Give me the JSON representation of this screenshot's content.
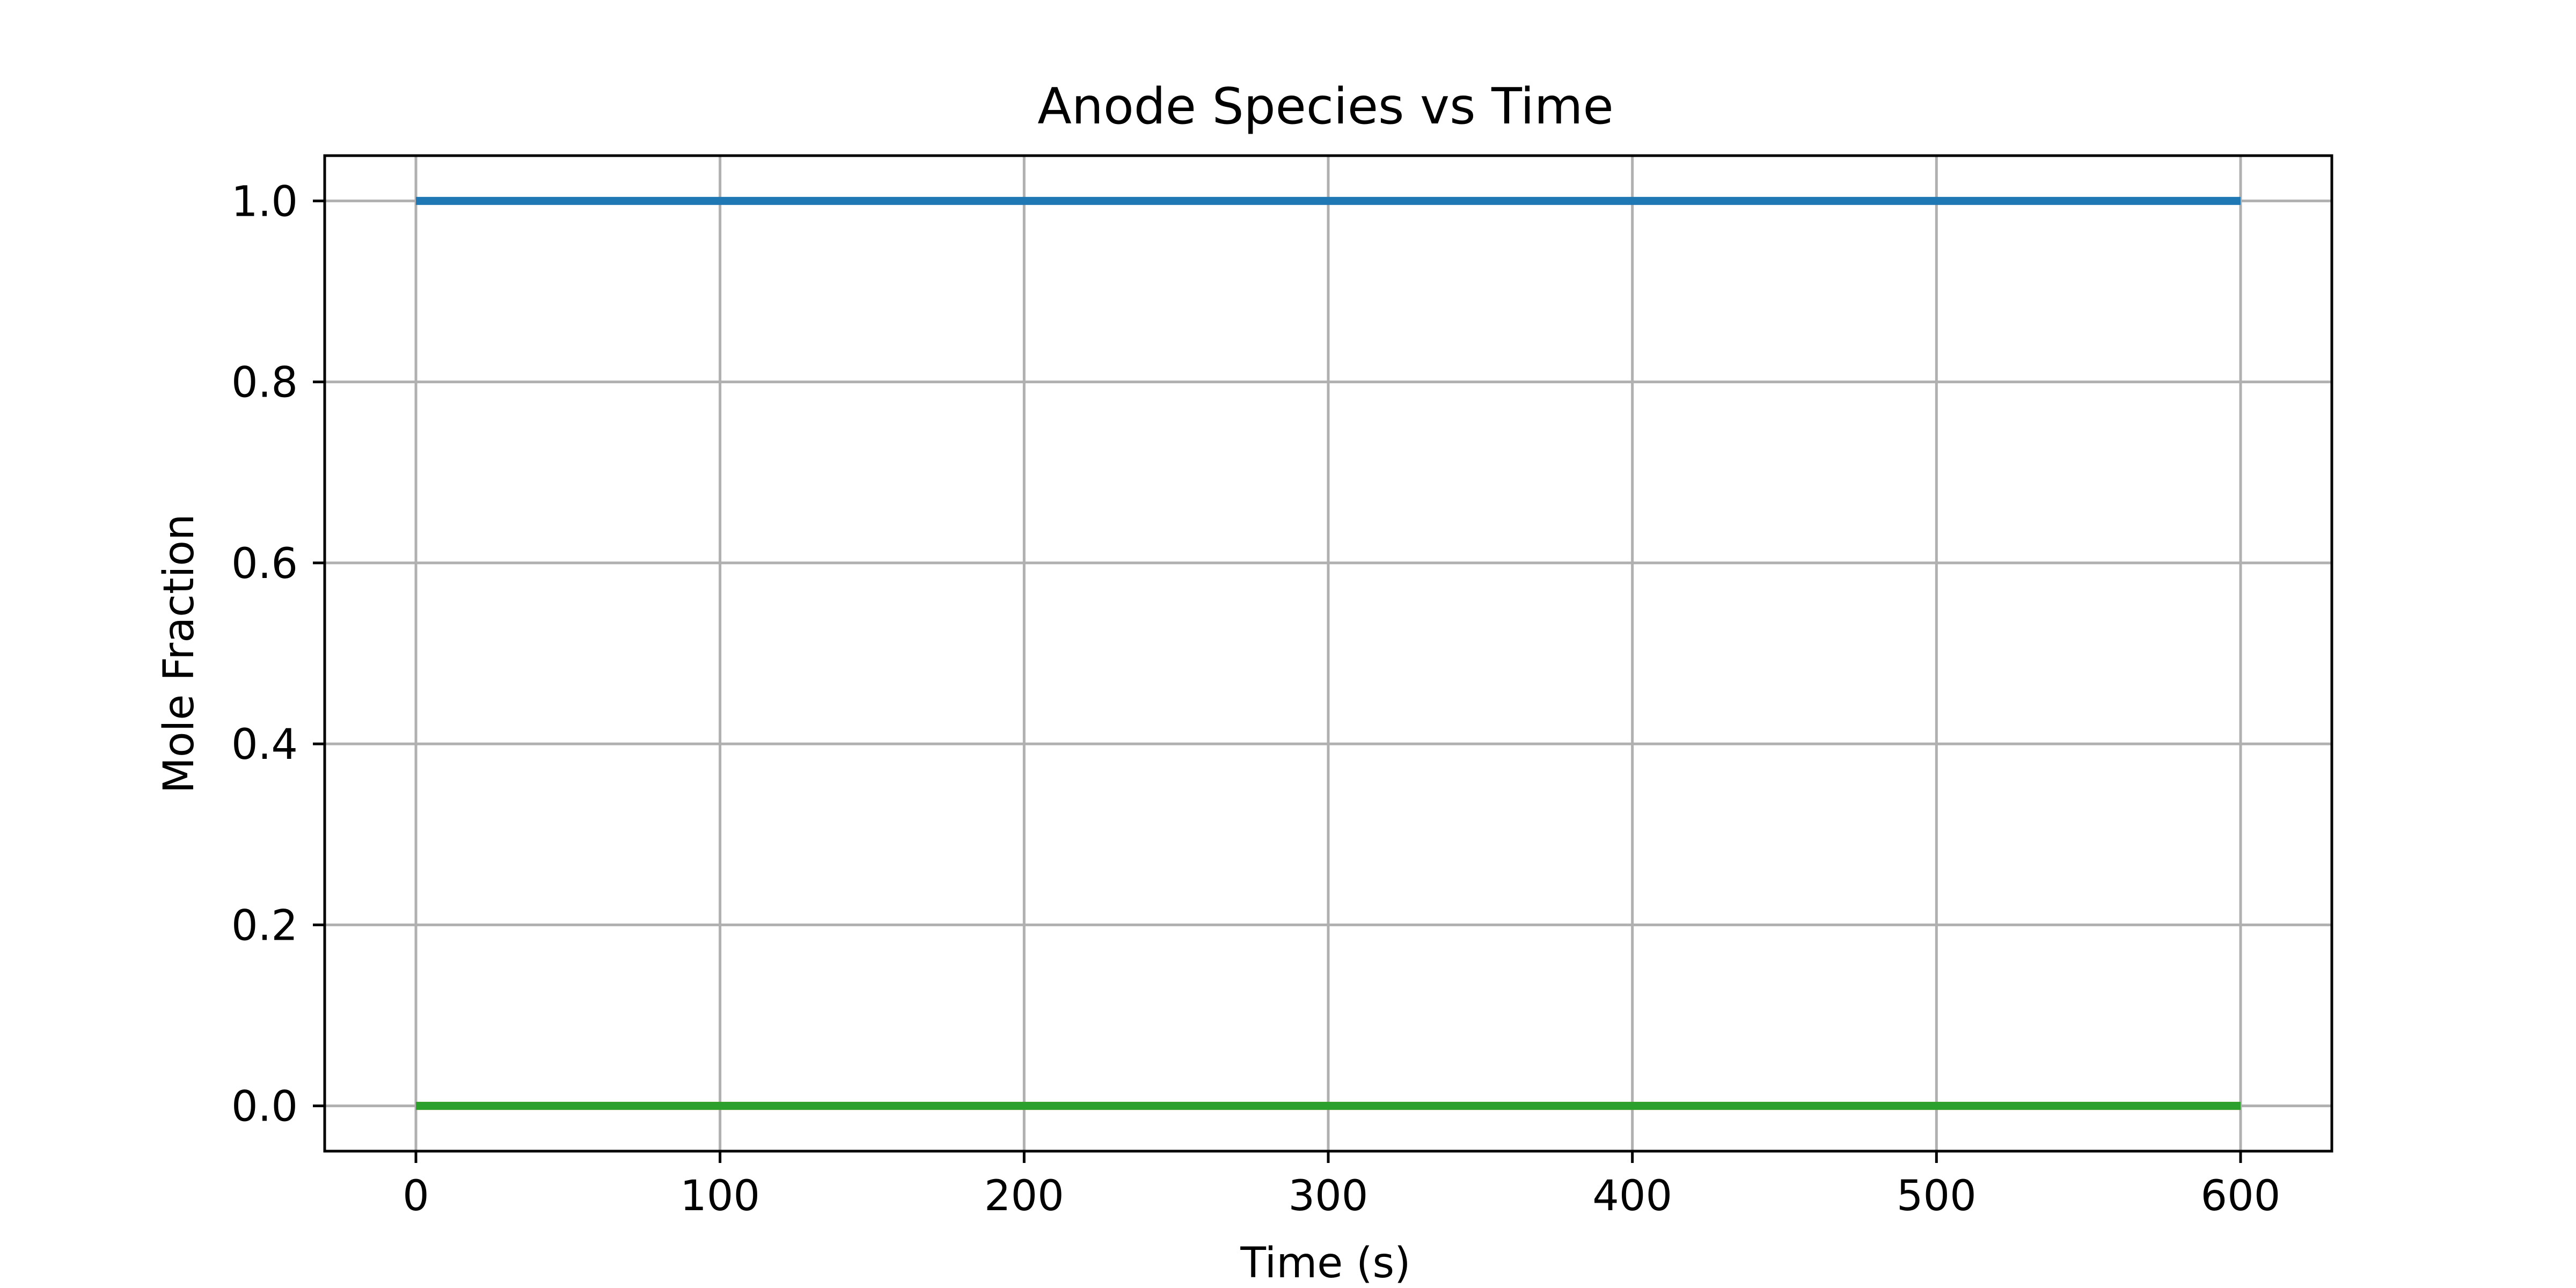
{
  "chart_data": {
    "type": "line",
    "title": "Anode Species vs Time",
    "xlabel": "Time (s)",
    "ylabel": "Mole Fraction",
    "xlim": [
      -30,
      630
    ],
    "ylim": [
      -0.05,
      1.05
    ],
    "xticks": [
      0,
      100,
      200,
      300,
      400,
      500,
      600
    ],
    "xtick_labels": [
      "0",
      "100",
      "200",
      "300",
      "400",
      "500",
      "600"
    ],
    "yticks": [
      0.0,
      0.2,
      0.4,
      0.6,
      0.8,
      1.0
    ],
    "ytick_labels": [
      "0.0",
      "0.2",
      "0.4",
      "0.6",
      "0.8",
      "1.0"
    ],
    "grid": true,
    "series": [
      {
        "color": "#1f77b4",
        "x": [
          0,
          600
        ],
        "y": [
          1.0,
          1.0
        ]
      },
      {
        "color": "#ff7f0e",
        "x": [
          0,
          600
        ],
        "y": [
          0.0,
          0.0
        ]
      },
      {
        "color": "#2ca02c",
        "x": [
          0,
          600
        ],
        "y": [
          0.0,
          0.0
        ]
      }
    ]
  }
}
